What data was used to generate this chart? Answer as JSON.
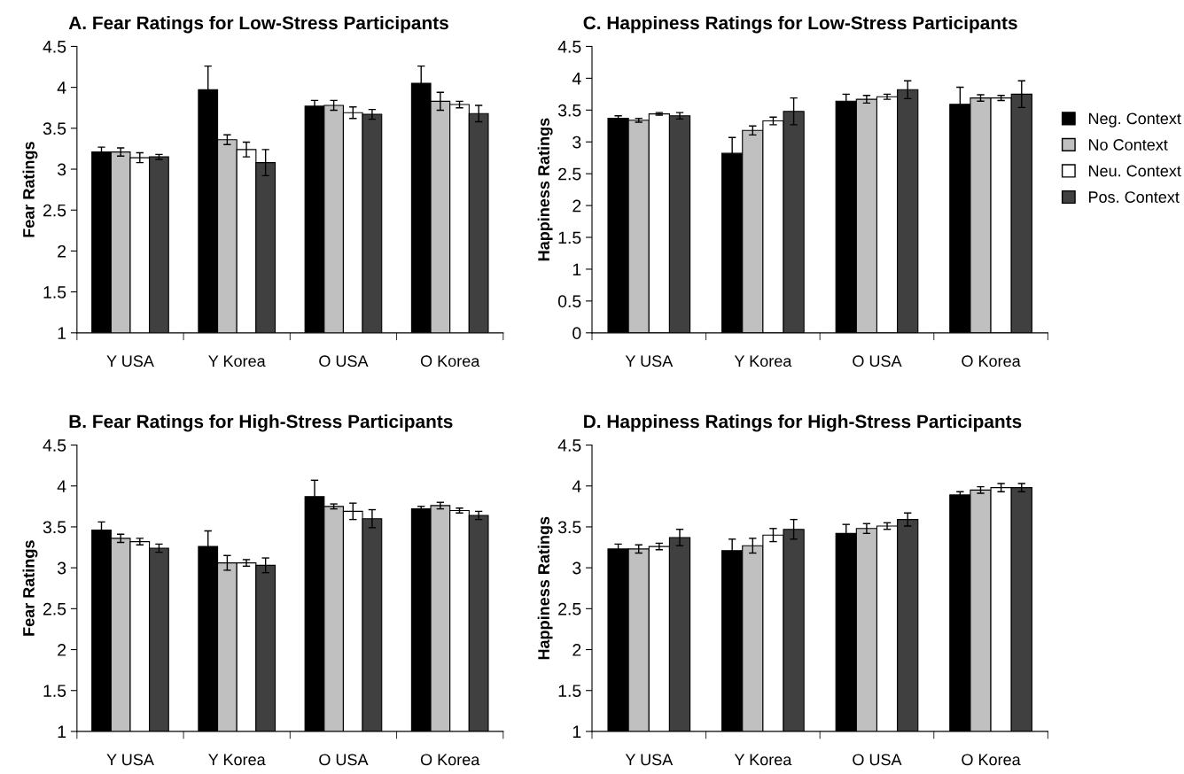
{
  "chart_data": [
    {
      "type": "bar",
      "title": "A. Fear Ratings for Low-Stress Participants",
      "ylabel": "Fear Ratings",
      "categories": [
        "Y USA",
        "Y Korea",
        "O USA",
        "O Korea"
      ],
      "ylim": [
        1,
        4.5
      ],
      "yticks": [
        1,
        1.5,
        2,
        2.5,
        3,
        3.5,
        4,
        4.5
      ],
      "grid": false,
      "legend": false,
      "series": [
        {
          "color": "#000000",
          "values": [
            3.21,
            3.97,
            3.77,
            4.05
          ],
          "errors": [
            0.06,
            0.29,
            0.07,
            0.21
          ]
        },
        {
          "color": "#c0c0c0",
          "values": [
            3.21,
            3.36,
            3.78,
            3.83
          ],
          "errors": [
            0.05,
            0.06,
            0.06,
            0.11
          ]
        },
        {
          "color": "#ffffff",
          "values": [
            3.14,
            3.24,
            3.69,
            3.79
          ],
          "errors": [
            0.06,
            0.09,
            0.07,
            0.04
          ]
        },
        {
          "color": "#404040",
          "values": [
            3.15,
            3.08,
            3.67,
            3.68
          ],
          "errors": [
            0.03,
            0.16,
            0.06,
            0.1
          ]
        }
      ]
    },
    {
      "type": "bar",
      "title": "C. Happiness Ratings for Low-Stress Participants",
      "ylabel": "Happiness Ratings",
      "categories": [
        "Y USA",
        "Y Korea",
        "O USA",
        "O Korea"
      ],
      "ylim": [
        0,
        4.5
      ],
      "yticks": [
        0,
        0.5,
        1,
        1.5,
        2,
        2.5,
        3,
        3.5,
        4,
        4.5
      ],
      "grid": false,
      "legend": "right",
      "series": [
        {
          "name": "Neg. Context",
          "color": "#000000",
          "values": [
            3.37,
            2.82,
            3.64,
            3.59
          ],
          "errors": [
            0.04,
            0.25,
            0.11,
            0.27
          ]
        },
        {
          "name": "No Context",
          "color": "#c0c0c0",
          "values": [
            3.34,
            3.18,
            3.67,
            3.69
          ],
          "errors": [
            0.03,
            0.07,
            0.06,
            0.05
          ]
        },
        {
          "name": "Neu. Context",
          "color": "#ffffff",
          "values": [
            3.44,
            3.33,
            3.71,
            3.69
          ],
          "errors": [
            0.02,
            0.06,
            0.04,
            0.04
          ]
        },
        {
          "name": "Pos. Context",
          "color": "#404040",
          "values": [
            3.41,
            3.48,
            3.82,
            3.75
          ],
          "errors": [
            0.05,
            0.21,
            0.14,
            0.21
          ]
        }
      ]
    },
    {
      "type": "bar",
      "title": "B. Fear Ratings for High-Stress Participants",
      "ylabel": "Fear Ratings",
      "categories": [
        "Y USA",
        "Y Korea",
        "O USA",
        "O Korea"
      ],
      "ylim": [
        1,
        4.5
      ],
      "yticks": [
        1,
        1.5,
        2,
        2.5,
        3,
        3.5,
        4,
        4.5
      ],
      "grid": false,
      "legend": false,
      "series": [
        {
          "color": "#000000",
          "values": [
            3.46,
            3.26,
            3.87,
            3.72
          ],
          "errors": [
            0.1,
            0.19,
            0.2,
            0.03
          ]
        },
        {
          "color": "#c0c0c0",
          "values": [
            3.36,
            3.06,
            3.75,
            3.76
          ],
          "errors": [
            0.05,
            0.09,
            0.03,
            0.04
          ]
        },
        {
          "color": "#ffffff",
          "values": [
            3.32,
            3.06,
            3.69,
            3.7
          ],
          "errors": [
            0.04,
            0.04,
            0.1,
            0.03
          ]
        },
        {
          "color": "#404040",
          "values": [
            3.24,
            3.03,
            3.6,
            3.64
          ],
          "errors": [
            0.05,
            0.09,
            0.11,
            0.05
          ]
        }
      ]
    },
    {
      "type": "bar",
      "title": "D. Happiness Ratings for High-Stress Participants",
      "ylabel": "Happiness Ratings",
      "categories": [
        "Y USA",
        "Y Korea",
        "O USA",
        "O Korea"
      ],
      "ylim": [
        1,
        4.5
      ],
      "yticks": [
        1,
        1.5,
        2,
        2.5,
        3,
        3.5,
        4,
        4.5
      ],
      "grid": false,
      "legend": false,
      "series": [
        {
          "color": "#000000",
          "values": [
            3.23,
            3.21,
            3.42,
            3.89
          ],
          "errors": [
            0.06,
            0.14,
            0.11,
            0.04
          ]
        },
        {
          "color": "#c0c0c0",
          "values": [
            3.23,
            3.27,
            3.48,
            3.95
          ],
          "errors": [
            0.05,
            0.09,
            0.06,
            0.04
          ]
        },
        {
          "color": "#ffffff",
          "values": [
            3.26,
            3.4,
            3.51,
            3.98
          ],
          "errors": [
            0.04,
            0.08,
            0.04,
            0.05
          ]
        },
        {
          "color": "#404040",
          "values": [
            3.37,
            3.47,
            3.59,
            3.98
          ],
          "errors": [
            0.1,
            0.12,
            0.08,
            0.05
          ]
        }
      ]
    }
  ]
}
